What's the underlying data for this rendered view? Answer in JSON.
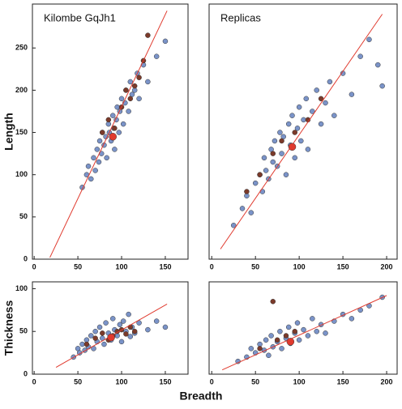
{
  "chart_data": [
    {
      "type": "scatter",
      "title": "Kilombe GqJh1",
      "ylabel": "Length",
      "xlim": [
        -2,
        176
      ],
      "ylim": [
        0,
        302
      ],
      "xticks": [
        0,
        50,
        100,
        150
      ],
      "yticks": [
        0,
        50,
        100,
        150,
        200,
        250
      ],
      "series": [
        {
          "mode": "markers",
          "color": "#7a93c8",
          "x": [
            55,
            60,
            62,
            65,
            68,
            70,
            72,
            74,
            75,
            77,
            78,
            80,
            82,
            83,
            85,
            86,
            88,
            90,
            91,
            92,
            94,
            95,
            97,
            98,
            100,
            102,
            104,
            105,
            108,
            110,
            112,
            115,
            118,
            120,
            125,
            130,
            140,
            150
          ],
          "values": [
            85,
            100,
            110,
            95,
            120,
            105,
            130,
            115,
            140,
            125,
            150,
            135,
            145,
            120,
            160,
            150,
            140,
            170,
            155,
            130,
            165,
            180,
            150,
            175,
            190,
            160,
            185,
            200,
            175,
            210,
            195,
            200,
            220,
            190,
            230,
            210,
            240,
            258
          ]
        },
        {
          "mode": "markers",
          "color": "#7b3a2a",
          "x": [
            78,
            85,
            92,
            100,
            105,
            110,
            115,
            120,
            125,
            130
          ],
          "values": [
            150,
            165,
            155,
            180,
            200,
            190,
            205,
            215,
            235,
            265
          ]
        },
        {
          "mode": "line",
          "color": "#e03a2e",
          "x": [
            18,
            152
          ],
          "values": [
            2,
            294
          ]
        },
        {
          "mode": "markers",
          "color": "#e03a2e",
          "x": [
            90
          ],
          "values": [
            145
          ]
        }
      ]
    },
    {
      "type": "scatter",
      "title": "Replicas",
      "xlim": [
        -3,
        212
      ],
      "ylim": [
        0,
        302
      ],
      "xticks": [
        0,
        50,
        100,
        150,
        200
      ],
      "series": [
        {
          "mode": "markers",
          "color": "#7a93c8",
          "x": [
            25,
            35,
            40,
            45,
            50,
            55,
            58,
            60,
            62,
            65,
            68,
            70,
            72,
            75,
            78,
            80,
            82,
            85,
            88,
            90,
            92,
            95,
            98,
            100,
            102,
            105,
            108,
            110,
            115,
            120,
            125,
            130,
            135,
            140,
            150,
            160,
            170,
            180,
            190,
            195
          ],
          "values": [
            40,
            60,
            75,
            55,
            90,
            100,
            80,
            120,
            105,
            95,
            130,
            115,
            140,
            110,
            150,
            125,
            145,
            100,
            160,
            135,
            170,
            120,
            155,
            180,
            140,
            165,
            190,
            130,
            175,
            200,
            160,
            185,
            210,
            170,
            220,
            195,
            240,
            260,
            230,
            205
          ]
        },
        {
          "mode": "markers",
          "color": "#7b3a2a",
          "x": [
            40,
            55,
            70,
            80,
            95,
            110,
            125
          ],
          "values": [
            80,
            100,
            125,
            140,
            150,
            165,
            190
          ]
        },
        {
          "mode": "line",
          "color": "#e03a2e",
          "x": [
            10,
            195
          ],
          "values": [
            12,
            290
          ]
        },
        {
          "mode": "markers",
          "color": "#e03a2e",
          "x": [
            92
          ],
          "values": [
            133
          ]
        }
      ]
    },
    {
      "type": "scatter",
      "ylabel": "Thickness",
      "xlabel": "Breadth",
      "xlim": [
        -2,
        176
      ],
      "ylim": [
        0,
        108
      ],
      "xticks": [
        0,
        50,
        100,
        150
      ],
      "yticks": [
        0,
        50,
        100
      ],
      "series": [
        {
          "mode": "markers",
          "color": "#7a93c8",
          "x": [
            45,
            50,
            52,
            55,
            58,
            60,
            62,
            65,
            68,
            70,
            72,
            75,
            78,
            80,
            82,
            85,
            88,
            90,
            92,
            95,
            98,
            100,
            102,
            105,
            108,
            110,
            112,
            115,
            120,
            130,
            140,
            150
          ],
          "values": [
            20,
            30,
            25,
            35,
            28,
            40,
            32,
            45,
            30,
            50,
            38,
            55,
            42,
            35,
            60,
            48,
            40,
            65,
            52,
            45,
            58,
            38,
            62,
            50,
            70,
            44,
            55,
            48,
            60,
            52,
            62,
            55
          ]
        },
        {
          "mode": "markers",
          "color": "#7b3a2a",
          "x": [
            60,
            70,
            78,
            85,
            90,
            95,
            100,
            105,
            110,
            115
          ],
          "values": [
            35,
            42,
            48,
            40,
            45,
            50,
            52,
            47,
            55,
            50
          ]
        },
        {
          "mode": "line",
          "color": "#e03a2e",
          "x": [
            25,
            152
          ],
          "values": [
            8,
            82
          ]
        },
        {
          "mode": "markers",
          "color": "#e03a2e",
          "x": [
            88
          ],
          "values": [
            43
          ]
        }
      ]
    },
    {
      "type": "scatter",
      "xlim": [
        -3,
        212
      ],
      "ylim": [
        0,
        108
      ],
      "xticks": [
        0,
        50,
        100,
        150,
        200
      ],
      "series": [
        {
          "mode": "markers",
          "color": "#7a93c8",
          "x": [
            30,
            40,
            45,
            50,
            55,
            60,
            62,
            65,
            68,
            70,
            75,
            78,
            80,
            85,
            88,
            90,
            95,
            98,
            100,
            105,
            110,
            115,
            120,
            125,
            130,
            140,
            150,
            160,
            170,
            180,
            195
          ],
          "values": [
            15,
            20,
            30,
            25,
            35,
            28,
            40,
            22,
            45,
            32,
            38,
            50,
            30,
            42,
            55,
            36,
            48,
            60,
            40,
            52,
            45,
            65,
            50,
            58,
            48,
            62,
            70,
            65,
            75,
            80,
            90
          ]
        },
        {
          "mode": "markers",
          "color": "#7b3a2a",
          "x": [
            55,
            70,
            75,
            85,
            95
          ],
          "values": [
            30,
            85,
            40,
            45,
            50
          ]
        },
        {
          "mode": "line",
          "color": "#e03a2e",
          "x": [
            12,
            200
          ],
          "values": [
            5,
            92
          ]
        },
        {
          "mode": "markers",
          "color": "#e03a2e",
          "x": [
            90
          ],
          "values": [
            38
          ]
        }
      ]
    }
  ]
}
